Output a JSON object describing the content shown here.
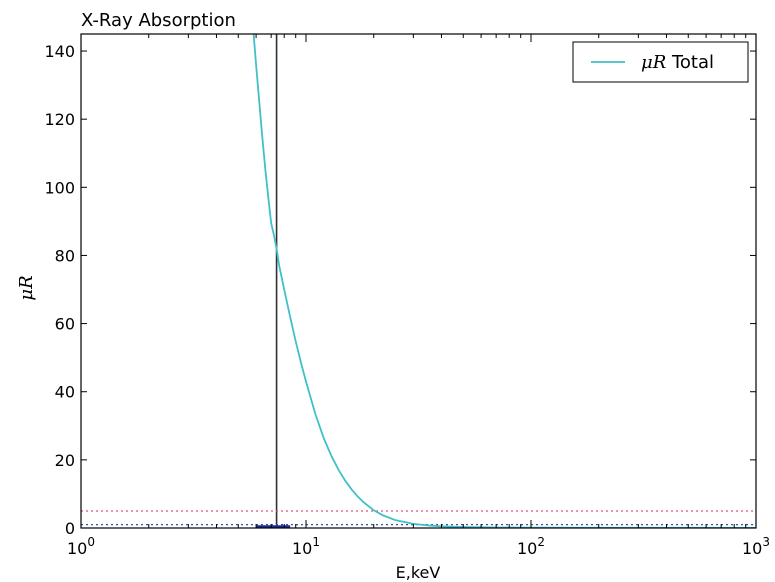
{
  "chart_data": {
    "type": "line",
    "title": "X-Ray Absorption",
    "xlabel": "E,keV",
    "ylabel": "μR",
    "xscale": "log",
    "xlim": [
      1,
      1000
    ],
    "ylim": [
      0,
      145
    ],
    "xticks": [
      1,
      10,
      100,
      1000
    ],
    "xtick_labels": [
      {
        "base": "10",
        "exp": "0"
      },
      {
        "base": "10",
        "exp": "1"
      },
      {
        "base": "10",
        "exp": "2"
      },
      {
        "base": "10",
        "exp": "3"
      }
    ],
    "yticks": [
      0,
      20,
      40,
      60,
      80,
      100,
      120,
      140
    ],
    "ytick_labels": [
      "0",
      "20",
      "40",
      "60",
      "80",
      "100",
      "120",
      "140"
    ],
    "grid": false,
    "legend": {
      "position": "top-right",
      "entries": [
        {
          "symbol": "μR",
          "text": "Total",
          "color": "#40c0c8"
        }
      ]
    },
    "series": [
      {
        "name": "μR Total",
        "color": "#40c0c8",
        "x": [
          5.85,
          6.0,
          6.2,
          6.4,
          6.6,
          6.8,
          7.0,
          7.2,
          7.4,
          7.6,
          7.8,
          8.0,
          8.5,
          9,
          9.5,
          10,
          11,
          12,
          13,
          14,
          15,
          16,
          17,
          18,
          20,
          22,
          25,
          30,
          35,
          40,
          50,
          70,
          100,
          200,
          500,
          1000
        ],
        "y": [
          145,
          136,
          125,
          114.5,
          105,
          97,
          89.5,
          86,
          82,
          77,
          73.5,
          70,
          62,
          54.8,
          48.5,
          43,
          33.5,
          26.3,
          21,
          16.9,
          13.7,
          11.2,
          9.2,
          7.6,
          5.2,
          3.7,
          2.3,
          1.2,
          0.75,
          0.5,
          0.28,
          0.15,
          0.1,
          0.07,
          0.05,
          0.04
        ]
      }
    ],
    "reference_lines": [
      {
        "orientation": "vertical",
        "x": 7.4,
        "color": "#303030",
        "style": "solid"
      },
      {
        "orientation": "horizontal",
        "y": 5,
        "color": "#e0507a",
        "style": "dotted"
      },
      {
        "orientation": "horizontal",
        "y": 1,
        "color": "#3050c0",
        "style": "dotted"
      }
    ]
  }
}
